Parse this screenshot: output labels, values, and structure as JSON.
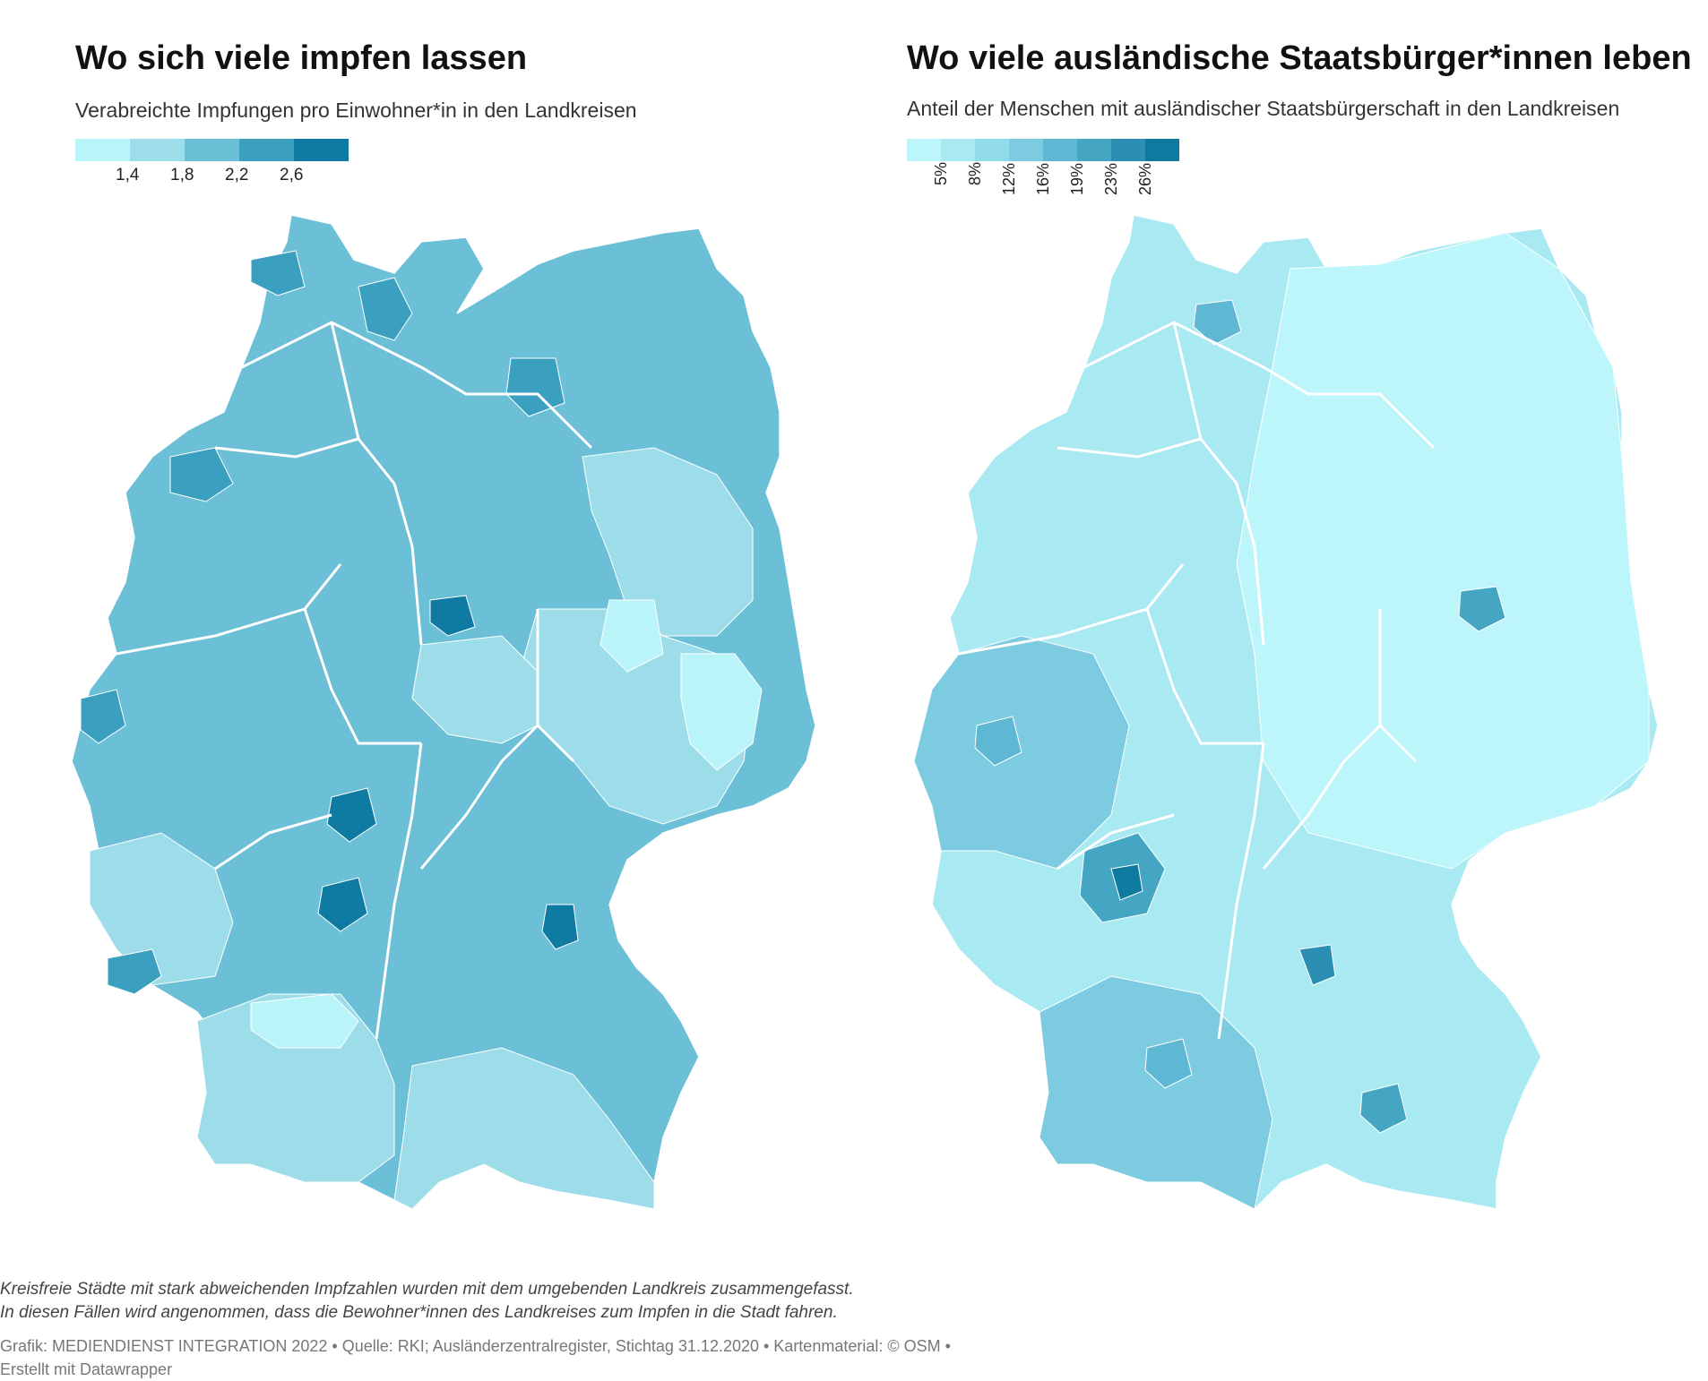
{
  "left_map": {
    "title": "Wo sich viele impfen lassen",
    "subtitle": "Verabreichte Impfungen pro Einwohner*in in den Landkreisen",
    "legend": {
      "colors": [
        "#b9f4f8",
        "#9cdde9",
        "#6bbfd6",
        "#3b9fc0",
        "#0f7ba3"
      ],
      "ticks": [
        "1,4",
        "1,8",
        "2,2",
        "2,6"
      ]
    }
  },
  "right_map": {
    "title": "Wo viele ausländische Staatsbürger*innen leben",
    "subtitle": "Anteil der Menschen mit ausländischer Staatsbürgerschaft in den Landkreisen",
    "legend": {
      "colors": [
        "#bdf6fa",
        "#a8e9f2",
        "#92dbea",
        "#7ccbe0",
        "#5fb8d3",
        "#45a6c4",
        "#2a8fb2",
        "#0f7a9f"
      ],
      "ticks": [
        "5%",
        "8%",
        "12%",
        "16%",
        "19%",
        "23%",
        "26%"
      ]
    }
  },
  "notes": {
    "line1": "Kreisfreie Städte mit stark abweichenden Impfzahlen wurden mit dem umgebenden Landkreis zusammengefasst.",
    "line2": "In diesen Fällen wird angenommen, dass die Bewohner*innen des Landkreises zum Impfen in die Stadt fahren."
  },
  "credit": "Grafik: MEDIENDIENST INTEGRATION 2022 • Quelle: RKI; Ausländerzentralregister, Stichtag 31.12.2020 • Kartenmaterial: © OSM • Erstellt mit Datawrapper",
  "colors": {
    "map_base_left": "#6bbfd6",
    "map_base_right": "#b3eef6",
    "state_border": "#ffffff"
  }
}
